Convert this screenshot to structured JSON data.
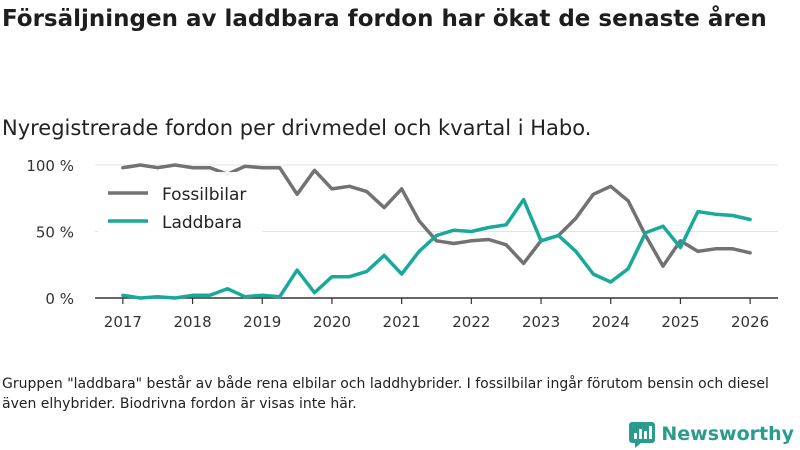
{
  "title": "Försäljningen av laddbara fordon har ökat de senaste åren",
  "subtitle": "Nyregistrerade fordon per drivmedel och kvartal i Habo.",
  "footnote": "Gruppen \"laddbara\" består av både rena elbilar och laddhybrider. I fossilbilar ingår förutom bensin och diesel även elhybrider. Biodrivna fordon är visas inte här.",
  "brand": {
    "name": "Newsworthy",
    "logo_icon": "newsworthy-logo-icon"
  },
  "colors": {
    "fossil": "#727272",
    "laddbara": "#19a99b",
    "grid": "#e3e3e3",
    "axis": "#333333",
    "brand": "#2a9b8f"
  },
  "chart_data": {
    "type": "line",
    "x_start": 2017.0,
    "x_step": 0.25,
    "xlim": [
      2016.6,
      2026.4
    ],
    "ylim": [
      0,
      100
    ],
    "y_ticks": [
      0,
      50,
      100
    ],
    "y_tick_labels": [
      "0 %",
      "50 %",
      "100 %"
    ],
    "x_ticks": [
      2017,
      2018,
      2019,
      2020,
      2021,
      2022,
      2023,
      2024,
      2025,
      2026
    ],
    "x_tick_labels": [
      "2017",
      "2018",
      "2019",
      "2020",
      "2021",
      "2022",
      "2023",
      "2024",
      "2025",
      "2026"
    ],
    "legend_position": "top-left",
    "series": [
      {
        "name": "Fossilbilar",
        "values": [
          98,
          100,
          98,
          100,
          98,
          98,
          93,
          99,
          98,
          98,
          78,
          96,
          82,
          84,
          80,
          68,
          82,
          58,
          43,
          41,
          43,
          44,
          40,
          26,
          43,
          47,
          60,
          78,
          84,
          73,
          47,
          24,
          43,
          35,
          37,
          37,
          34
        ]
      },
      {
        "name": "Laddbara",
        "values": [
          2,
          0,
          1,
          0,
          2,
          2,
          7,
          1,
          2,
          1,
          21,
          4,
          16,
          16,
          20,
          32,
          18,
          35,
          47,
          51,
          50,
          53,
          55,
          74,
          43,
          47,
          35,
          18,
          12,
          22,
          49,
          54,
          38,
          65,
          63,
          62,
          59
        ]
      }
    ]
  }
}
